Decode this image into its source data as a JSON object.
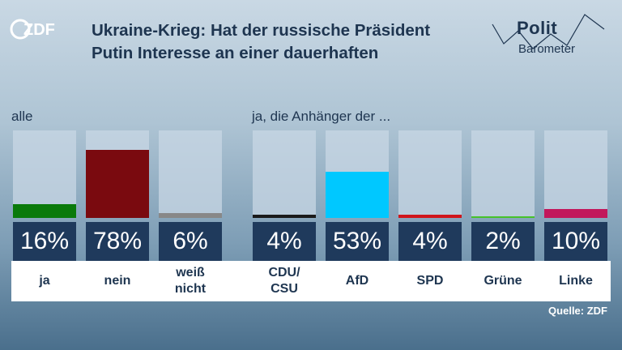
{
  "header": {
    "title": "Ukraine-Krieg: Hat der russische Präsident Putin Interesse an einer dauerhaften",
    "logo_text": "ZDF",
    "brand_line1": "Polit",
    "brand_line2": "Barometer"
  },
  "sections": {
    "all_label": "alle",
    "supporters_label": "ja, die Anhänger der ..."
  },
  "source": "Quelle: ZDF",
  "colors": {
    "navy": "#1f3a5c",
    "ja": "#0a7a0a",
    "nein": "#7a0a0f",
    "weiss_nicht": "#888888",
    "cdu": "#1a1a1a",
    "afd": "#00c8ff",
    "spd": "#d0151b",
    "gruene": "#46c22b",
    "linke": "#c2185b"
  },
  "chart_data": [
    {
      "type": "bar",
      "title": "alle",
      "categories": [
        "ja",
        "nein",
        "weiß nicht"
      ],
      "values": [
        16,
        78,
        6
      ],
      "value_labels": [
        "16%",
        "78%",
        "6%"
      ],
      "colors": [
        "#0a7a0a",
        "#7a0a0f",
        "#888888"
      ],
      "ylim": [
        0,
        100
      ]
    },
    {
      "type": "bar",
      "title": "ja, die Anhänger der ...",
      "categories": [
        "CDU/CSU",
        "AfD",
        "SPD",
        "Grüne",
        "Linke"
      ],
      "category_lines": [
        [
          "CDU/",
          "CSU"
        ],
        [
          "AfD"
        ],
        [
          "SPD"
        ],
        [
          "Grüne"
        ],
        [
          "Linke"
        ]
      ],
      "values": [
        4,
        53,
        4,
        2,
        10
      ],
      "value_labels": [
        "4%",
        "53%",
        "4%",
        "2%",
        "10%"
      ],
      "colors": [
        "#1a1a1a",
        "#00c8ff",
        "#d0151b",
        "#46c22b",
        "#c2185b"
      ],
      "ylim": [
        0,
        100
      ]
    }
  ]
}
